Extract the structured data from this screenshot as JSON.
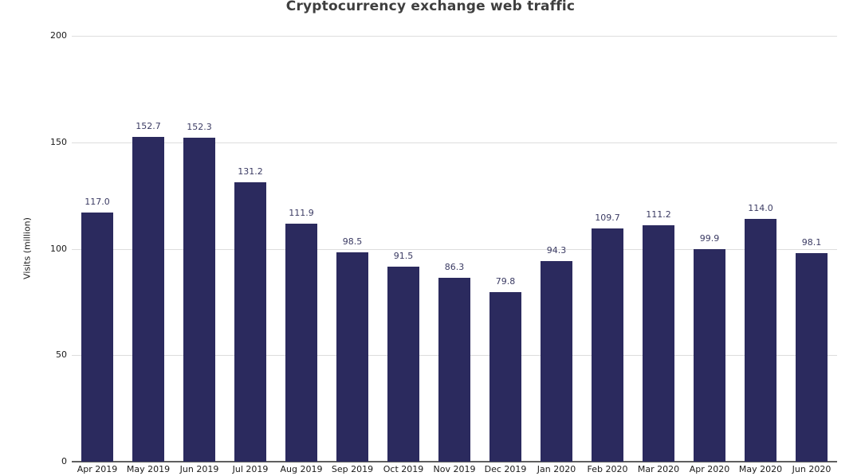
{
  "chart": {
    "title": "Cryptocurrency exchange web traffic",
    "ylabel": "Visits (million)"
  },
  "chart_data": {
    "type": "bar",
    "title": "Cryptocurrency exchange web traffic",
    "xlabel": "",
    "ylabel": "Visits (million)",
    "categories": [
      "Apr 2019",
      "May 2019",
      "Jun 2019",
      "Jul 2019",
      "Aug 2019",
      "Sep 2019",
      "Oct 2019",
      "Nov 2019",
      "Dec 2019",
      "Jan 2020",
      "Feb 2020",
      "Mar 2020",
      "Apr 2020",
      "May 2020",
      "Jun 2020"
    ],
    "values": [
      117.0,
      152.7,
      152.3,
      131.2,
      111.9,
      98.5,
      91.5,
      86.3,
      79.8,
      94.3,
      109.7,
      111.2,
      99.9,
      114.0,
      98.1
    ],
    "value_labels": [
      "117.0",
      "152.7",
      "152.3",
      "131.2",
      "111.9",
      "98.5",
      "91.5",
      "86.3",
      "79.8",
      "94.3",
      "109.7",
      "111.2",
      "99.9",
      "114.0",
      "98.1"
    ],
    "ylim": [
      0,
      200
    ],
    "yticks": [
      0,
      50,
      100,
      150,
      200
    ],
    "grid": true,
    "legend_position": "none",
    "colors": {
      "bar": "#2b2a5e",
      "value_label": "#3b3b63",
      "title": "#3f3f3f",
      "axis_text": "#1a1a1a",
      "gridline": "#dddddd",
      "zero_line": "#5f5f5f"
    }
  }
}
